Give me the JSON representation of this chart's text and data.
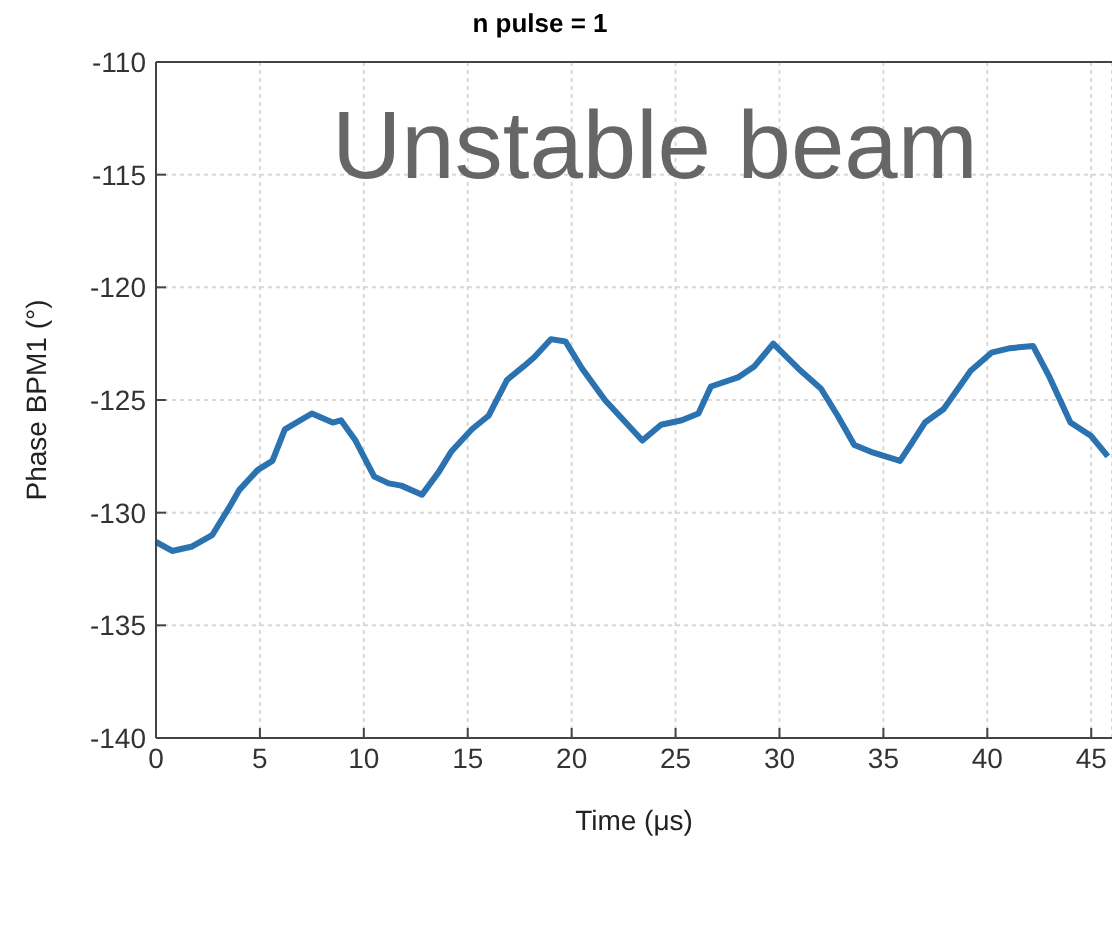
{
  "chart_data": {
    "type": "line",
    "title": "n pulse = 1",
    "xlabel": "Time (μs)",
    "ylabel": "Phase BPM1 (°)",
    "annotations": [
      "Unstable beam"
    ],
    "xlim": [
      0,
      46
    ],
    "xticks": [
      0,
      5,
      10,
      15,
      20,
      25,
      30,
      35,
      40,
      45
    ],
    "ylim": [
      -140,
      -110
    ],
    "yticks": [
      -140,
      -135,
      -130,
      -125,
      -120,
      -115,
      -110
    ],
    "grid": true,
    "marker": "none",
    "line_style": "solid",
    "series": [
      {
        "color": "#2a72b0",
        "x": [
          0,
          0.78,
          1.74,
          2.7,
          3.5,
          4.0,
          4.9,
          5.6,
          6.2,
          7.5,
          8.5,
          8.9,
          9.6,
          10.5,
          11.2,
          11.8,
          12.8,
          13.6,
          14.2,
          15.2,
          16.0,
          16.9,
          17.7,
          18.2,
          19.0,
          19.7,
          20.5,
          21.6,
          22.5,
          23.4,
          24.3,
          25.3,
          26.1,
          26.7,
          28.0,
          28.8,
          29.7,
          30.9,
          32.0,
          32.8,
          33.6,
          34.4,
          35.8,
          36.3,
          37.0,
          37.9,
          39.2,
          40.2,
          41.1,
          42.2,
          43.0,
          44.0,
          45.0,
          45.8
        ],
        "values": [
          -131.3,
          -131.7,
          -131.5,
          -131.0,
          -129.8,
          -129.0,
          -128.1,
          -127.7,
          -126.3,
          -125.6,
          -126.0,
          -125.9,
          -126.8,
          -128.4,
          -128.7,
          -128.8,
          -129.2,
          -128.2,
          -127.3,
          -126.3,
          -125.7,
          -124.1,
          -123.5,
          -123.1,
          -122.3,
          -122.4,
          -123.6,
          -125.0,
          -125.9,
          -126.8,
          -126.1,
          -125.9,
          -125.6,
          -124.4,
          -124.0,
          -123.5,
          -122.5,
          -123.6,
          -124.5,
          -125.7,
          -127.0,
          -127.3,
          -127.7,
          -127.0,
          -126.0,
          -125.4,
          -123.7,
          -122.9,
          -122.7,
          -122.6,
          -124.0,
          -126.0,
          -126.6,
          -127.5
        ]
      }
    ]
  }
}
